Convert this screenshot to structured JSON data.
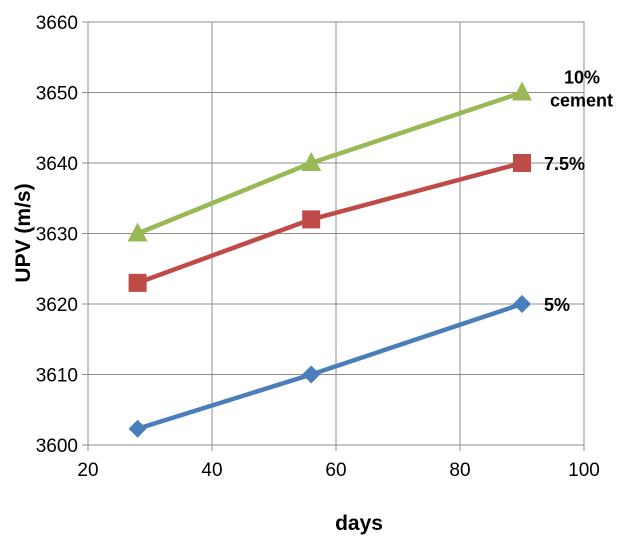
{
  "chart_data": {
    "type": "line",
    "title": "",
    "xlabel": "days",
    "ylabel": "UPV (m/s)",
    "xlim": [
      20,
      100
    ],
    "ylim": [
      3600,
      3660
    ],
    "xticks": [
      "20",
      "40",
      "60",
      "80",
      "100"
    ],
    "yticks": [
      "3600",
      "3610",
      "3620",
      "3630",
      "3640",
      "3650",
      "3660"
    ],
    "grid": true,
    "x": [
      28,
      56,
      90
    ],
    "series": [
      {
        "name": "5%",
        "label_lines": [
          "5%"
        ],
        "color": "#4a7ebb",
        "marker": "diamond",
        "values": [
          3602.3,
          3610,
          3620
        ]
      },
      {
        "name": "7.5%",
        "label_lines": [
          "7.5%"
        ],
        "color": "#be4b48",
        "marker": "square",
        "values": [
          3623,
          3632,
          3640
        ]
      },
      {
        "name": "10% cement",
        "label_lines": [
          "10%",
          "cement"
        ],
        "color": "#98b954",
        "marker": "triangle",
        "values": [
          3630,
          3640,
          3650
        ]
      }
    ]
  }
}
